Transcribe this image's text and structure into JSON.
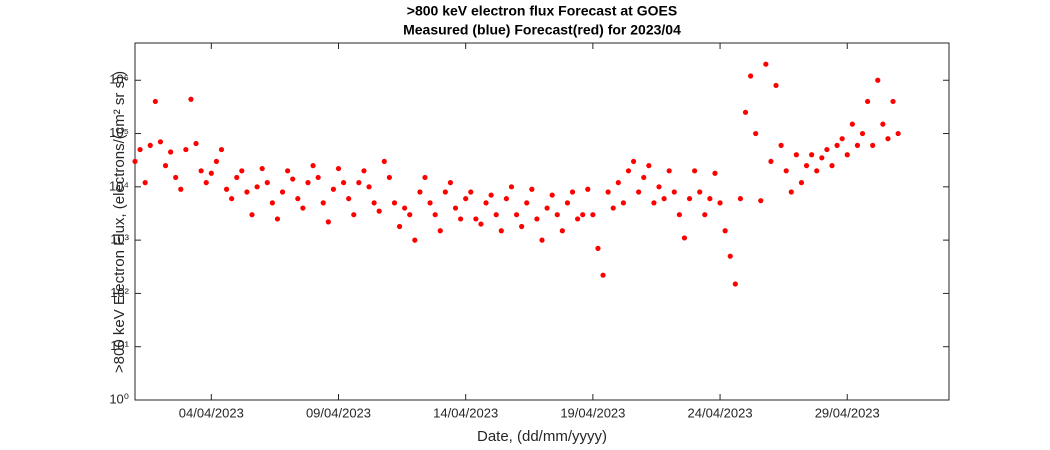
{
  "chart_data": {
    "type": "scatter",
    "title": ">800 keV electron flux Forecast at GOES",
    "subtitle": "Measured (blue) Forecast(red) for 2023/04",
    "x_label": "Date, (dd/mm/yyyy)",
    "y_label": ">800 keV Electron Flux, (electrons/(cm² sr s))",
    "color": "#ff0000",
    "log_y": true,
    "xlim": [
      1,
      33
    ],
    "xticks": [
      {
        "value": 4,
        "label": "04/04/2023"
      },
      {
        "value": 9,
        "label": "09/04/2023"
      },
      {
        "value": 14,
        "label": "14/04/2023"
      },
      {
        "value": 19,
        "label": "19/04/2023"
      },
      {
        "value": 24,
        "label": "24/04/2023"
      },
      {
        "value": 29,
        "label": "29/04/2023"
      }
    ],
    "ylim": [
      1,
      5000000
    ],
    "yticks": [
      {
        "value": 1,
        "label": "10⁰"
      },
      {
        "value": 10,
        "label": "10¹"
      },
      {
        "value": 100,
        "label": "10²"
      },
      {
        "value": 1000,
        "label": "10³"
      },
      {
        "value": 10000,
        "label": "10⁴"
      },
      {
        "value": 100000,
        "label": "10⁵"
      },
      {
        "value": 1000000,
        "label": "10⁶"
      }
    ],
    "x": [
      1.0,
      1.2,
      1.4,
      1.6,
      1.8,
      2.0,
      2.2,
      2.4,
      2.6,
      2.8,
      3.0,
      3.2,
      3.4,
      3.6,
      3.8,
      4.0,
      4.2,
      4.4,
      4.6,
      4.8,
      5.0,
      5.2,
      5.4,
      5.6,
      5.8,
      6.0,
      6.2,
      6.4,
      6.6,
      6.8,
      7.0,
      7.2,
      7.4,
      7.6,
      7.8,
      8.0,
      8.2,
      8.4,
      8.6,
      8.8,
      9.0,
      9.2,
      9.4,
      9.6,
      9.8,
      10.0,
      10.2,
      10.4,
      10.6,
      10.8,
      11.0,
      11.2,
      11.4,
      11.6,
      11.8,
      12.0,
      12.2,
      12.4,
      12.6,
      12.8,
      13.0,
      13.2,
      13.4,
      13.6,
      13.8,
      14.0,
      14.2,
      14.4,
      14.6,
      14.8,
      15.0,
      15.2,
      15.4,
      15.6,
      15.8,
      16.0,
      16.2,
      16.4,
      16.6,
      16.8,
      17.0,
      17.2,
      17.4,
      17.6,
      17.8,
      18.0,
      18.2,
      18.4,
      18.6,
      18.8,
      19.0,
      19.2,
      19.4,
      19.6,
      19.8,
      20.0,
      20.2,
      20.4,
      20.6,
      20.8,
      21.0,
      21.2,
      21.4,
      21.6,
      21.8,
      22.0,
      22.2,
      22.4,
      22.6,
      22.8,
      23.0,
      23.2,
      23.4,
      23.6,
      23.8,
      24.0,
      24.2,
      24.4,
      24.6,
      24.8,
      25.0,
      25.2,
      25.4,
      25.6,
      25.8,
      26.0,
      26.2,
      26.4,
      26.6,
      26.8,
      27.0,
      27.2,
      27.4,
      27.6,
      27.8,
      28.0,
      28.2,
      28.4,
      28.6,
      28.8,
      29.0,
      29.2,
      29.4,
      29.6,
      29.8,
      30.0,
      30.2,
      30.4,
      30.6,
      30.8,
      31.0
    ],
    "values": [
      30000,
      50000,
      12000,
      60000,
      400000,
      70000,
      25000,
      45000,
      15000,
      9000,
      50000,
      440000,
      65000,
      20000,
      12000,
      18000,
      30000,
      50000,
      9000,
      6000,
      15000,
      20000,
      8000,
      3000,
      10000,
      22000,
      12000,
      5000,
      2500,
      8000,
      20000,
      14000,
      6000,
      4000,
      12000,
      25000,
      15000,
      5000,
      2200,
      9000,
      22000,
      12000,
      6000,
      3000,
      12000,
      20000,
      10000,
      5000,
      3500,
      30000,
      15000,
      5000,
      1800,
      4000,
      3000,
      1000,
      8000,
      15000,
      5000,
      3000,
      1500,
      8000,
      12000,
      4000,
      2500,
      6000,
      8000,
      2500,
      2000,
      5000,
      7000,
      3000,
      1500,
      6000,
      10000,
      3000,
      1800,
      5000,
      9000,
      2500,
      1000,
      4000,
      7000,
      3000,
      1500,
      5000,
      8000,
      2500,
      3000,
      9000,
      3000,
      700,
      220,
      8000,
      4000,
      12000,
      5000,
      20000,
      30000,
      8000,
      15000,
      25000,
      5000,
      10000,
      6000,
      20000,
      8000,
      3000,
      1100,
      6000,
      20000,
      8000,
      3000,
      6000,
      18000,
      5000,
      1500,
      500,
      150,
      6000,
      250000,
      1200000,
      100000,
      5500,
      2000000,
      30000,
      800000,
      60000,
      20000,
      8000,
      40000,
      12000,
      25000,
      40000,
      20000,
      35000,
      50000,
      25000,
      60000,
      80000,
      40000,
      150000,
      60000,
      100000,
      400000,
      60000,
      1000000,
      150000,
      80000,
      400000,
      100000
    ]
  }
}
